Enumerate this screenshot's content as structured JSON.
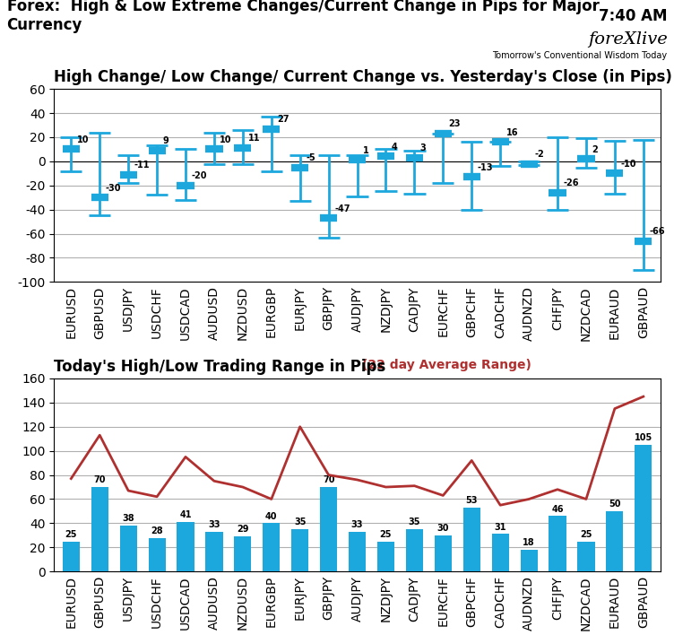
{
  "title": "Forex:  High & Low Extreme Changes/Current Change in Pips for Major Currency",
  "annotations": [
    "7:40 AM",
    "foreXlive",
    "Tomorrow's Conventional Wisdom Today"
  ],
  "chart_data": [
    {
      "type": "range",
      "title": "High Change/ Low Change/ Current Change vs. Yesterday's Close (in Pips)",
      "categories": [
        "EURUSD",
        "GBPUSD",
        "USDJPY",
        "USDCHF",
        "USDCAD",
        "AUDUSD",
        "NZDUSD",
        "EURGBP",
        "EURJPY",
        "GBPJPY",
        "AUDJPY",
        "NZDJPY",
        "CADJPY",
        "EURCHF",
        "GBPCHF",
        "CADCHF",
        "AUDNZD",
        "CHFJPY",
        "NZDCAD",
        "EURAUD",
        "GBPAUD"
      ],
      "high": [
        20,
        24,
        5,
        13,
        10,
        24,
        26,
        37,
        5,
        5,
        5,
        10,
        9,
        23,
        16,
        16,
        0,
        20,
        19,
        17,
        18
      ],
      "low": [
        -8,
        -45,
        -18,
        -28,
        -32,
        -2,
        -2,
        -8,
        -33,
        -63,
        -29,
        -25,
        -27,
        -18,
        -40,
        -4,
        -3,
        -40,
        -5,
        -27,
        -90
      ],
      "values": [
        10,
        -30,
        -11,
        9,
        -20,
        10,
        11,
        27,
        -5,
        -47,
        1,
        4,
        3,
        23,
        -13,
        16,
        -2,
        -26,
        2,
        -10,
        -66
      ],
      "color": "#1CA8DD",
      "ylim": [
        -100,
        60
      ],
      "yticks": [
        -100,
        -80,
        -60,
        -40,
        -20,
        0,
        20,
        40,
        60
      ],
      "grid": true,
      "data_labels": true
    },
    {
      "type": "bar",
      "title": "Today's High/Low Trading Range in Pips",
      "subtitle": "(22 day Average Range)",
      "categories": [
        "EURUSD",
        "GBPUSD",
        "USDJPY",
        "USDCHF",
        "USDCAD",
        "AUDUSD",
        "NZDUSD",
        "EURGBP",
        "EURJPY",
        "GBPJPY",
        "AUDJPY",
        "NZDJPY",
        "CADJPY",
        "EURCHF",
        "GBPCHF",
        "CADCHF",
        "AUDNZD",
        "CHFJPY",
        "NZDCAD",
        "EURAUD",
        "GBPAUD"
      ],
      "series": [
        {
          "type": "bar",
          "color": "#1CA8DD",
          "values": [
            25,
            70,
            38,
            28,
            41,
            33,
            29,
            40,
            35,
            70,
            33,
            25,
            35,
            30,
            53,
            31,
            18,
            46,
            25,
            50,
            105
          ]
        },
        {
          "type": "line",
          "color": "#B03030",
          "values": [
            77,
            113,
            67,
            62,
            95,
            75,
            70,
            60,
            120,
            80,
            76,
            70,
            71,
            63,
            92,
            55,
            60,
            68,
            60,
            135,
            145
          ]
        }
      ],
      "ylim": [
        0,
        160
      ],
      "yticks": [
        0,
        20,
        40,
        60,
        80,
        100,
        120,
        140,
        160
      ],
      "grid": true,
      "data_labels": true
    }
  ]
}
